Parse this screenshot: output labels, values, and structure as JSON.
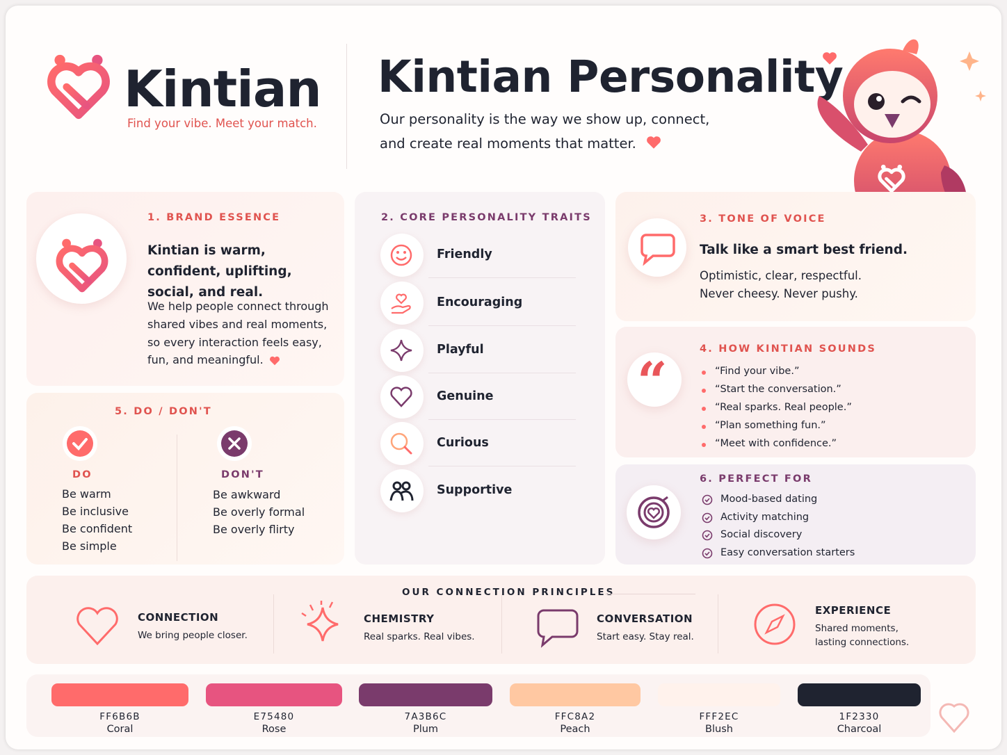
{
  "header": {
    "brand": "Kintian",
    "tagline": "Find your vibe. Meet your match.",
    "title": "Kintian Personality",
    "subtitle": [
      "Our personality is the way we show up, connect,",
      "and create real moments that matter."
    ]
  },
  "brand_essence": {
    "heading": "1. BRAND ESSENCE",
    "statement": "Kintian is warm, confident, uplifting, social, and real.",
    "body": "We help people connect through shared vibes and real moments, so every interaction feels easy, fun, and meaningful."
  },
  "traits": {
    "heading": "2. CORE PERSONALITY TRAITS",
    "items": [
      "Friendly",
      "Encouraging",
      "Playful",
      "Genuine",
      "Curious",
      "Supportive"
    ]
  },
  "tone": {
    "heading": "3. TONE OF VOICE",
    "headline": "Talk like a smart best friend.",
    "lines": [
      "Optimistic, clear, respectful.",
      "Never cheesy. Never pushy."
    ]
  },
  "sounds": {
    "heading": "4. HOW KINTIAN SOUNDS",
    "items": [
      "“Find your vibe.”",
      "“Start the conversation.”",
      "“Real sparks. Real people.”",
      "“Plan something fun.”",
      "“Meet with confidence.”"
    ]
  },
  "do_dont": {
    "heading": "5. DO / DON'T",
    "do": {
      "label": "DO",
      "items": [
        "Be warm",
        "Be inclusive",
        "Be confident",
        "Be simple"
      ]
    },
    "dont": {
      "label": "DON'T",
      "items": [
        "Be awkward",
        "Be overly formal",
        "Be overly flirty"
      ]
    }
  },
  "perfect_for": {
    "heading": "6. PERFECT FOR",
    "items": [
      "Mood-based dating",
      "Activity matching",
      "Social discovery",
      "Easy conversation starters"
    ]
  },
  "principles": {
    "heading": "OUR CONNECTION PRINCIPLES",
    "items": [
      {
        "title": "CONNECTION",
        "text": "We bring people closer."
      },
      {
        "title": "CHEMISTRY",
        "text": "Real sparks. Real vibes."
      },
      {
        "title": "CONVERSATION",
        "text": "Start easy. Stay real."
      },
      {
        "title": "EXPERIENCE",
        "text": "Shared moments, lasting connections."
      }
    ]
  },
  "palette": [
    {
      "hex": "FF6B6B",
      "name": "Coral"
    },
    {
      "hex": "E75480",
      "name": "Rose"
    },
    {
      "hex": "7A3B6C",
      "name": "Plum"
    },
    {
      "hex": "FFC8A2",
      "name": "Peach"
    },
    {
      "hex": "FFF2EC",
      "name": "Blush"
    },
    {
      "hex": "1F2330",
      "name": "Charcoal"
    }
  ]
}
